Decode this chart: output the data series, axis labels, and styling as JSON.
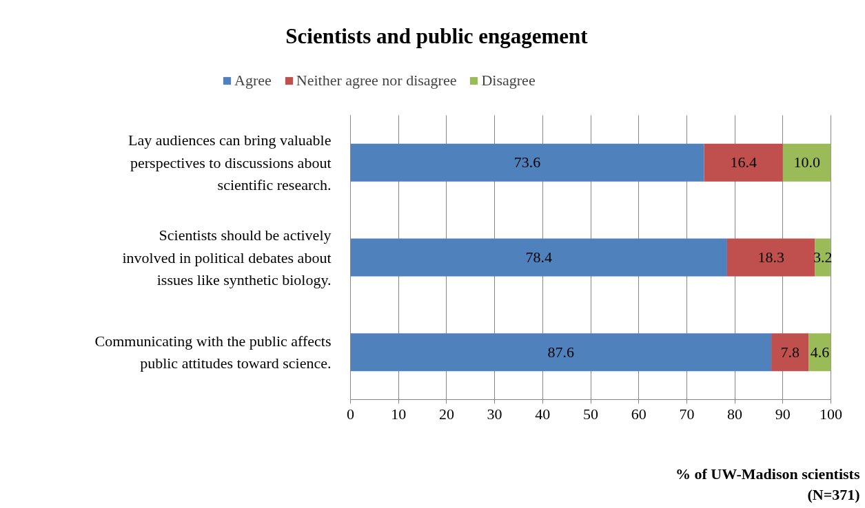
{
  "chart_data": {
    "type": "bar",
    "orientation": "horizontal",
    "stacked": true,
    "title": "Scientists and public engagement",
    "xlabel": "% of UW-Madison scientists (N=371)",
    "categories": [
      "Lay audiences can bring valuable perspectives to discussions about scientific research.",
      "Scientists should be actively involved in political debates about issues like synthetic biology.",
      "Communicating with the public affects public attitudes toward science."
    ],
    "series": [
      {
        "name": "Agree",
        "color": "#4f81bd",
        "values": [
          73.6,
          78.4,
          87.6
        ]
      },
      {
        "name": "Neither agree nor disagree",
        "color": "#c0504d",
        "values": [
          16.4,
          18.3,
          7.8
        ]
      },
      {
        "name": "Disagree",
        "color": "#9bbb59",
        "values": [
          10.0,
          3.2,
          4.6
        ],
        "value_labels": [
          "10.0",
          "3.2",
          "4.6"
        ]
      }
    ],
    "xlim": [
      0,
      100
    ],
    "xticks": [
      0,
      10,
      20,
      30,
      40,
      50,
      60,
      70,
      80,
      90,
      100
    ],
    "grid": "x",
    "legend": "top",
    "data_labels": true
  }
}
